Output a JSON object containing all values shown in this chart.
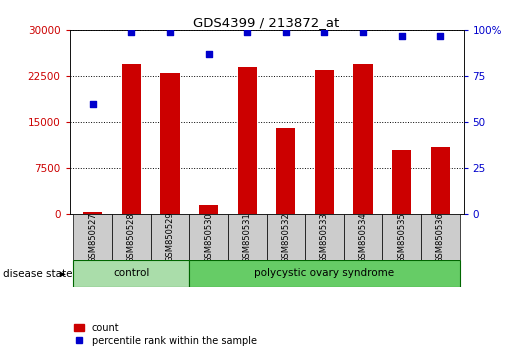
{
  "title": "GDS4399 / 213872_at",
  "samples": [
    "GSM850527",
    "GSM850528",
    "GSM850529",
    "GSM850530",
    "GSM850531",
    "GSM850532",
    "GSM850533",
    "GSM850534",
    "GSM850535",
    "GSM850536"
  ],
  "counts": [
    300,
    24500,
    23000,
    1500,
    24000,
    14000,
    23500,
    24500,
    10500,
    11000
  ],
  "percentiles": [
    60,
    99,
    99,
    87,
    99,
    99,
    99,
    99,
    97,
    97
  ],
  "ylim_left": [
    0,
    30000
  ],
  "ylim_right": [
    0,
    100
  ],
  "yticks_left": [
    0,
    7500,
    15000,
    22500,
    30000
  ],
  "yticks_right": [
    0,
    25,
    50,
    75,
    100
  ],
  "bar_color": "#cc0000",
  "dot_color": "#0000cc",
  "groups": [
    {
      "label": "control",
      "start": 0,
      "end": 3,
      "color": "#aaddaa"
    },
    {
      "label": "polycystic ovary syndrome",
      "start": 3,
      "end": 10,
      "color": "#66cc66"
    }
  ],
  "disease_state_label": "disease state",
  "legend_count_label": "count",
  "legend_percentile_label": "percentile rank within the sample",
  "bar_width": 0.5,
  "background_color": "#ffffff",
  "label_area_color": "#cccccc",
  "group_border_color": "#006600"
}
